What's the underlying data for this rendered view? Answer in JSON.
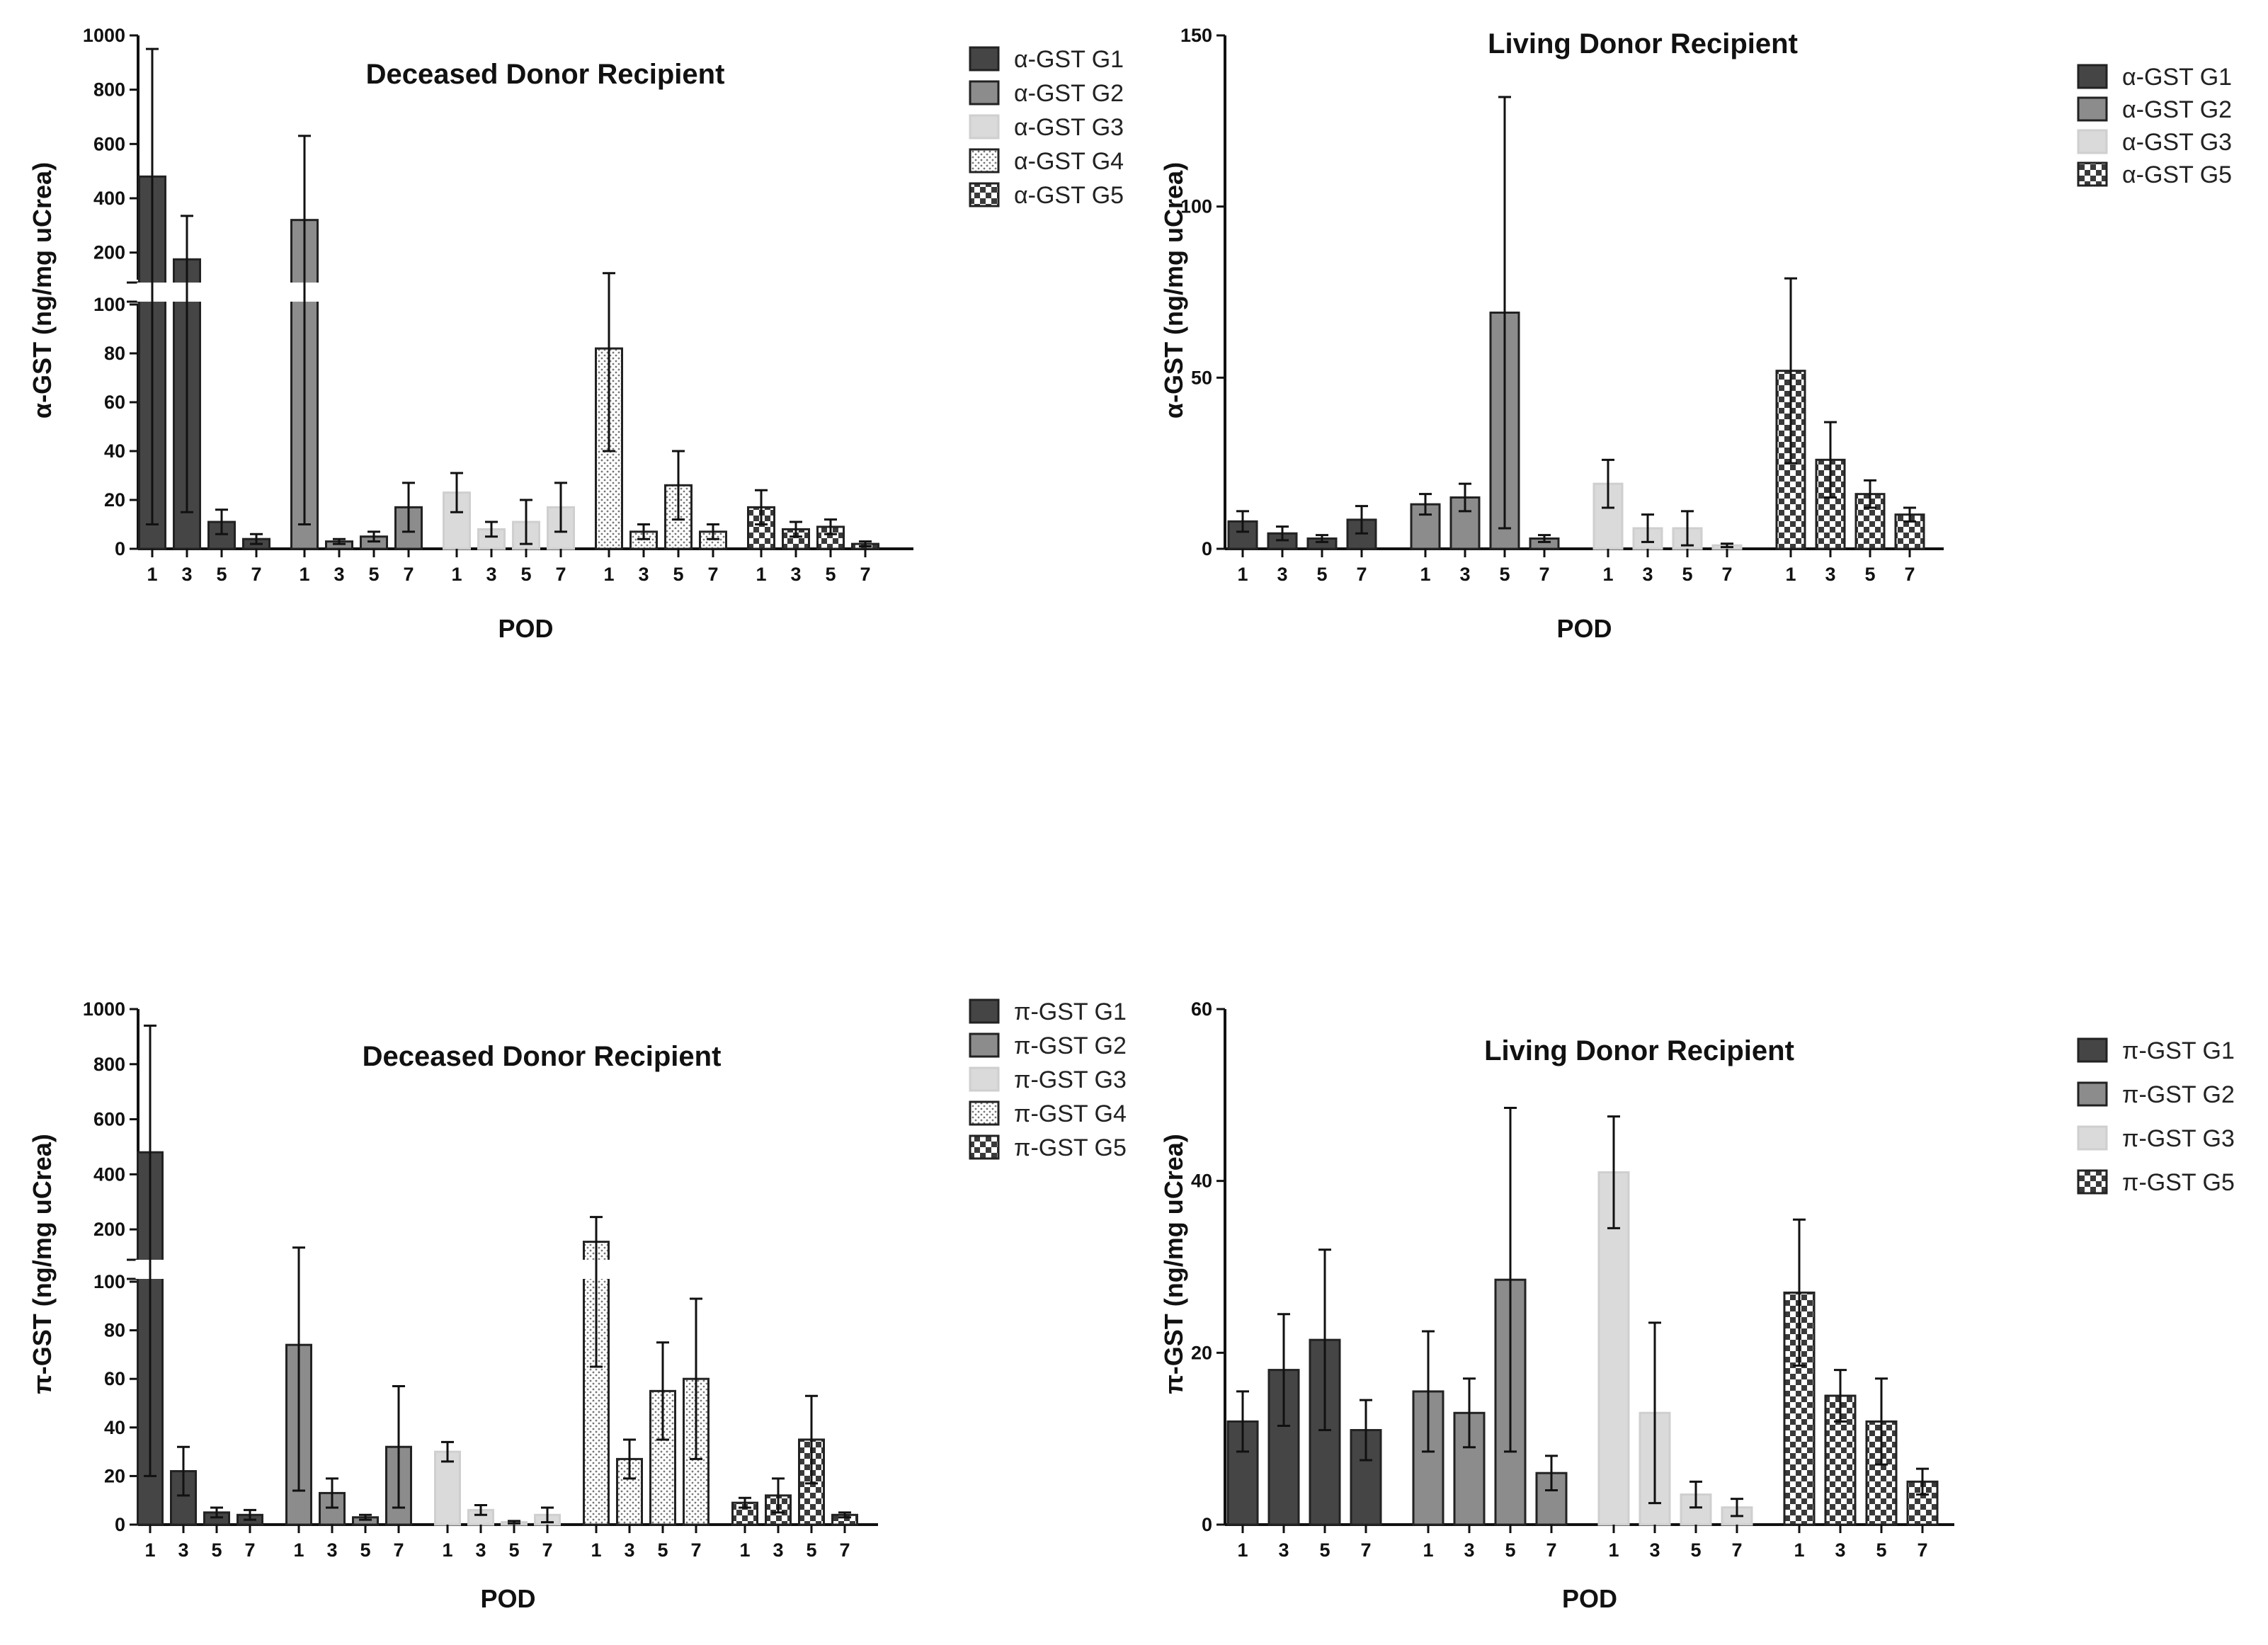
{
  "chart_data": [
    {
      "type": "bar",
      "panel": "alpha-deceased",
      "title": "Deceased Donor Recipient",
      "ylabel": "α-GST (ng/mg uCrea)",
      "xlabel": "POD",
      "broken_axis": {
        "lower": [
          0,
          100
        ],
        "upper": [
          100,
          1000
        ]
      },
      "yticks": [
        "0",
        "20",
        "40",
        "60",
        "80",
        "100",
        "200",
        "400",
        "600",
        "800",
        "1000"
      ],
      "groups": [
        {
          "name": "α-GST G1",
          "pattern": "solid-dark",
          "pods": [
            "1",
            "3",
            "5",
            "7"
          ],
          "values": [
            480,
            175,
            11,
            4
          ],
          "errors": [
            470,
            160,
            5,
            2
          ]
        },
        {
          "name": "α-GST G2",
          "pattern": "solid-mid",
          "pods": [
            "1",
            "3",
            "5",
            "7"
          ],
          "values": [
            320,
            3,
            5,
            17
          ],
          "errors": [
            310,
            1,
            2,
            10
          ]
        },
        {
          "name": "α-GST G3",
          "pattern": "solid-light",
          "pods": [
            "1",
            "3",
            "5",
            "7"
          ],
          "values": [
            23,
            8,
            11,
            17
          ],
          "errors": [
            8,
            3,
            9,
            10
          ]
        },
        {
          "name": "α-GST G4",
          "pattern": "dots",
          "pods": [
            "1",
            "3",
            "5",
            "7"
          ],
          "values": [
            82,
            7,
            26,
            7
          ],
          "errors": [
            42,
            3,
            14,
            3
          ]
        },
        {
          "name": "α-GST G5",
          "pattern": "checker",
          "pods": [
            "1",
            "3",
            "5",
            "7"
          ],
          "values": [
            17,
            8,
            9,
            2
          ],
          "errors": [
            7,
            3,
            3,
            1
          ]
        }
      ]
    },
    {
      "type": "bar",
      "panel": "alpha-living",
      "title": "Living Donor Recipient",
      "ylabel": "α-GST (ng/mg uCrea)",
      "xlabel": "POD",
      "ylim": [
        0,
        150
      ],
      "yticks": [
        "0",
        "50",
        "100",
        "150"
      ],
      "groups": [
        {
          "name": "α-GST G1",
          "pattern": "solid-dark",
          "pods": [
            "1",
            "3",
            "5",
            "7"
          ],
          "values": [
            8,
            4.5,
            3,
            8.5
          ],
          "errors": [
            3,
            2,
            1,
            4
          ]
        },
        {
          "name": "α-GST G2",
          "pattern": "solid-mid",
          "pods": [
            "1",
            "3",
            "5",
            "7"
          ],
          "values": [
            13,
            15,
            69,
            3
          ],
          "errors": [
            3,
            4,
            63,
            1
          ]
        },
        {
          "name": "α-GST G3",
          "pattern": "solid-light",
          "pods": [
            "1",
            "3",
            "5",
            "7"
          ],
          "values": [
            19,
            6,
            6,
            1
          ],
          "errors": [
            7,
            4,
            5,
            0.5
          ]
        },
        {
          "name": "α-GST G5",
          "pattern": "checker",
          "pods": [
            "1",
            "3",
            "5",
            "7"
          ],
          "values": [
            52,
            26,
            16,
            10
          ],
          "errors": [
            27,
            11,
            4,
            2
          ]
        }
      ]
    },
    {
      "type": "bar",
      "panel": "pi-deceased",
      "title": "Deceased Donor Recipient",
      "ylabel": "π-GST (ng/mg uCrea)",
      "xlabel": "POD",
      "broken_axis": {
        "lower": [
          0,
          100
        ],
        "upper": [
          100,
          1000
        ]
      },
      "yticks": [
        "0",
        "20",
        "40",
        "60",
        "80",
        "100",
        "200",
        "400",
        "600",
        "800",
        "1000"
      ],
      "groups": [
        {
          "name": "π-GST G1",
          "pattern": "solid-dark",
          "pods": [
            "1",
            "3",
            "5",
            "7"
          ],
          "values": [
            480,
            22,
            5,
            4
          ],
          "errors": [
            460,
            10,
            2,
            2
          ]
        },
        {
          "name": "π-GST G2",
          "pattern": "solid-mid",
          "pods": [
            "1",
            "3",
            "5",
            "7"
          ],
          "values": [
            74,
            13,
            3,
            32
          ],
          "errors": [
            60,
            6,
            1,
            25
          ]
        },
        {
          "name": "π-GST G3",
          "pattern": "solid-light",
          "pods": [
            "1",
            "3",
            "5",
            "7"
          ],
          "values": [
            30,
            6,
            1,
            4
          ],
          "errors": [
            4,
            2,
            0.5,
            3
          ]
        },
        {
          "name": "π-GST G4",
          "pattern": "dots",
          "pods": [
            "1",
            "3",
            "5",
            "7"
          ],
          "values": [
            155,
            27,
            55,
            60
          ],
          "errors": [
            90,
            8,
            20,
            33
          ]
        },
        {
          "name": "π-GST G5",
          "pattern": "checker-dark",
          "pods": [
            "1",
            "3",
            "5",
            "7"
          ],
          "values": [
            9,
            12,
            35,
            4
          ],
          "errors": [
            2,
            7,
            18,
            1
          ]
        }
      ]
    },
    {
      "type": "bar",
      "panel": "pi-living",
      "title": "Living Donor Recipient",
      "ylabel": "π-GST (ng/mg uCrea)",
      "xlabel": "POD",
      "ylim": [
        0,
        60
      ],
      "yticks": [
        "0",
        "20",
        "40",
        "60"
      ],
      "groups": [
        {
          "name": "π-GST G1",
          "pattern": "solid-dark",
          "pods": [
            "1",
            "3",
            "5",
            "7"
          ],
          "values": [
            12,
            18,
            21.5,
            11
          ],
          "errors": [
            3.5,
            6.5,
            10.5,
            3.5
          ]
        },
        {
          "name": "π-GST G2",
          "pattern": "solid-mid",
          "pods": [
            "1",
            "3",
            "5",
            "7"
          ],
          "values": [
            15.5,
            13,
            28.5,
            6
          ],
          "errors": [
            7,
            4,
            20,
            2
          ]
        },
        {
          "name": "π-GST G3",
          "pattern": "solid-light",
          "pods": [
            "1",
            "3",
            "5",
            "7"
          ],
          "values": [
            41,
            13,
            3.5,
            2
          ],
          "errors": [
            6.5,
            10.5,
            1.5,
            1
          ]
        },
        {
          "name": "π-GST G5",
          "pattern": "checker",
          "pods": [
            "1",
            "3",
            "5",
            "7"
          ],
          "values": [
            27,
            15,
            12,
            5
          ],
          "errors": [
            8.5,
            3,
            5,
            1.5
          ]
        }
      ]
    }
  ]
}
